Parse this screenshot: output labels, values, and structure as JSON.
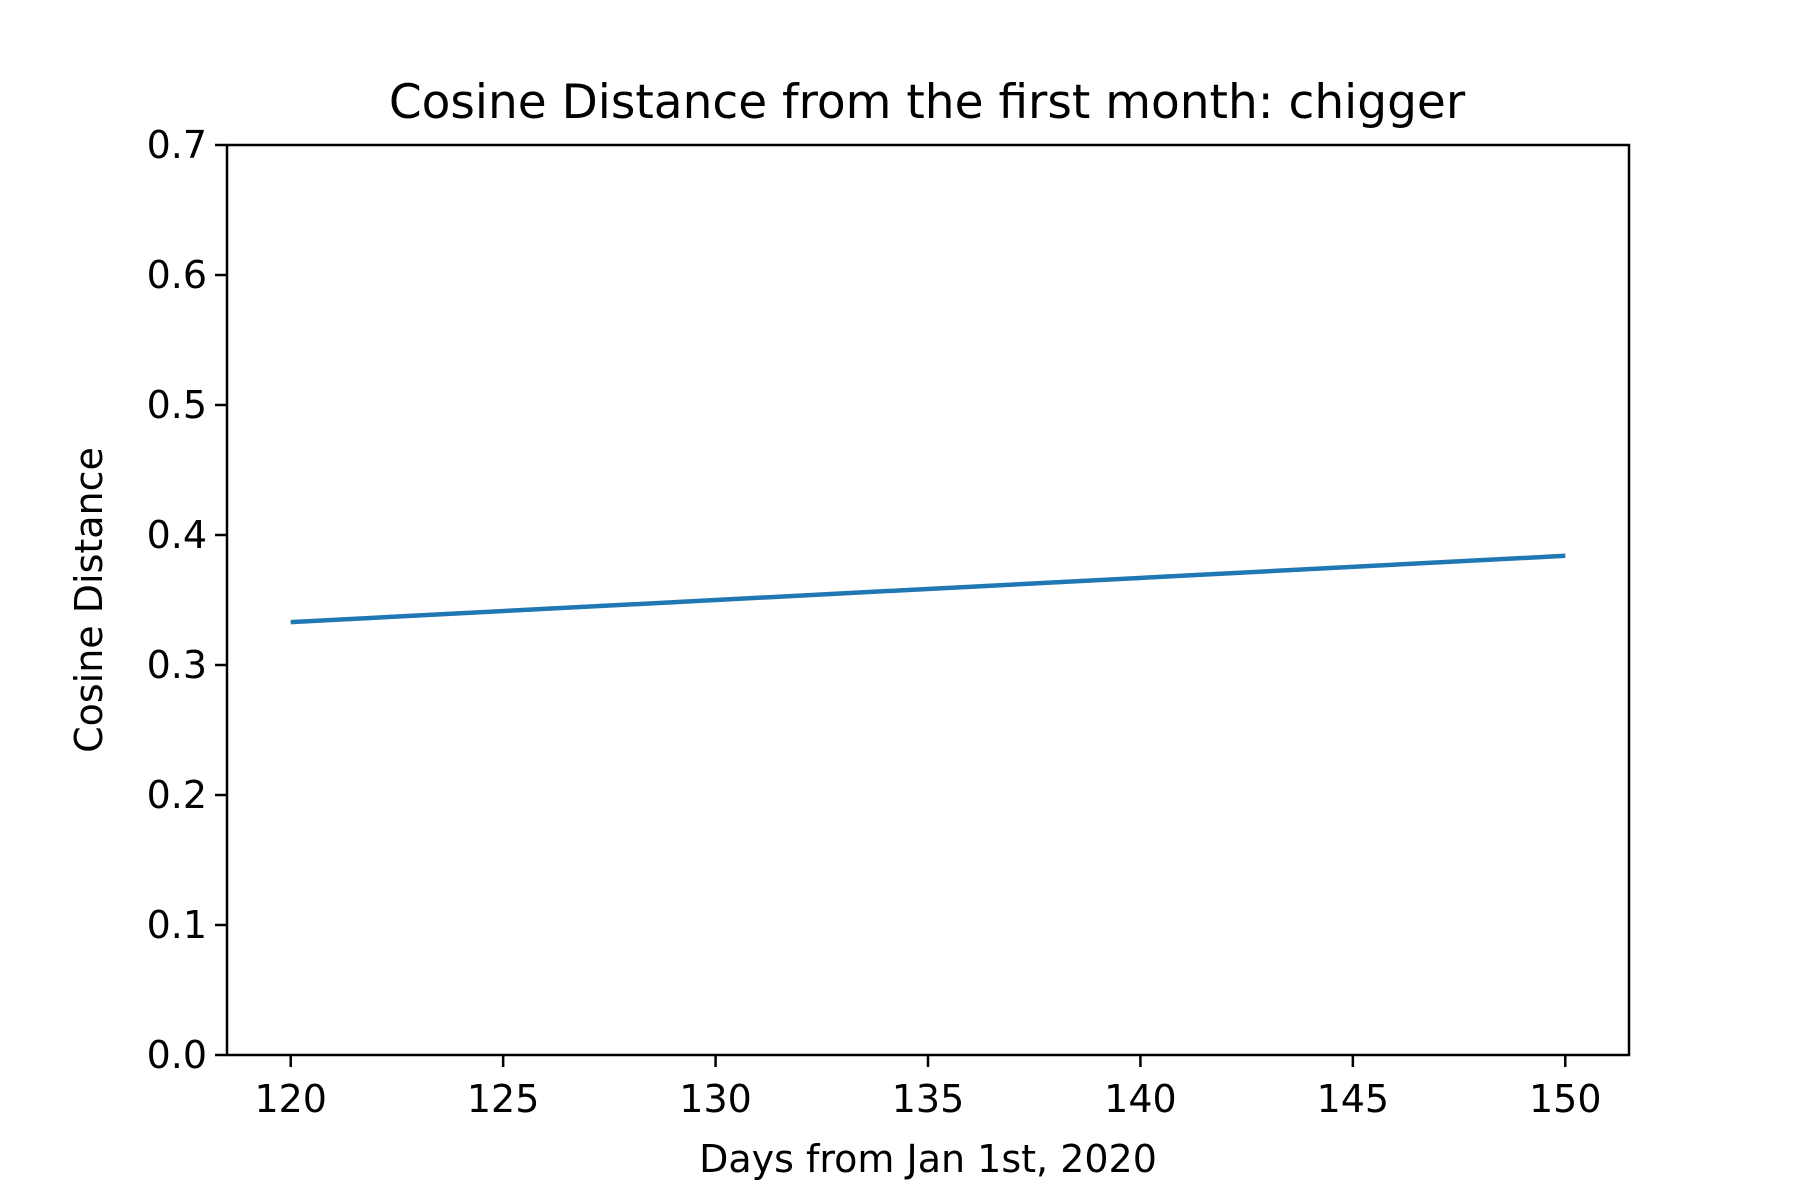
{
  "chart_data": {
    "type": "line",
    "title": "Cosine Distance from the first month: chigger",
    "xlabel": "Days from Jan 1st, 2020",
    "ylabel": "Cosine Distance",
    "xlim": [
      118.5,
      151.5
    ],
    "ylim": [
      0.0,
      0.7
    ],
    "x_ticks": [
      120,
      125,
      130,
      135,
      140,
      145,
      150
    ],
    "y_ticks": [
      0.0,
      0.1,
      0.2,
      0.3,
      0.4,
      0.5,
      0.6,
      0.7
    ],
    "y_tick_labels": [
      "0.0",
      "0.1",
      "0.2",
      "0.3",
      "0.4",
      "0.5",
      "0.6",
      "0.7"
    ],
    "grid": false,
    "series": [
      {
        "name": "chigger",
        "color": "#1f77b4",
        "x": [
          120,
          150
        ],
        "y": [
          0.333,
          0.384
        ]
      }
    ]
  }
}
